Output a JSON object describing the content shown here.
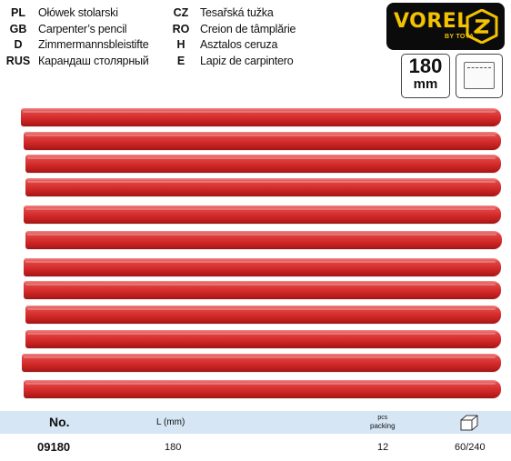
{
  "languages_left": [
    {
      "code": "PL",
      "name": "Ołówek stolarski"
    },
    {
      "code": "GB",
      "name": "Carpenter’s pencil"
    },
    {
      "code": "D",
      "name": "Zimmermannsbleistifte"
    },
    {
      "code": "RUS",
      "name": "Карандаш столярный"
    }
  ],
  "languages_right": [
    {
      "code": "CZ",
      "name": "Tesařská tužka"
    },
    {
      "code": "RO",
      "name": "Creion de tâmplărie"
    },
    {
      "code": "H",
      "name": "Asztalos ceruza"
    },
    {
      "code": "E",
      "name": "Lapiz de carpintero"
    }
  ],
  "logo": {
    "text": "VOREL",
    "sub": "BY TOYA",
    "accent": "#f3c200",
    "bg": "#0b0b0b"
  },
  "size_badge": {
    "value": "180",
    "unit": "mm"
  },
  "pencils": {
    "count": 12,
    "color": "#d42a2a"
  },
  "table": {
    "header": {
      "no": "No.",
      "length": "L (mm)",
      "pcs_top": "pcs",
      "pcs_bottom": "packing",
      "box_icon": "box-icon"
    },
    "row": {
      "no": "09180",
      "length": "180",
      "pcs": "12",
      "packing": "60/240"
    },
    "header_bg": "#d6e6f4"
  }
}
